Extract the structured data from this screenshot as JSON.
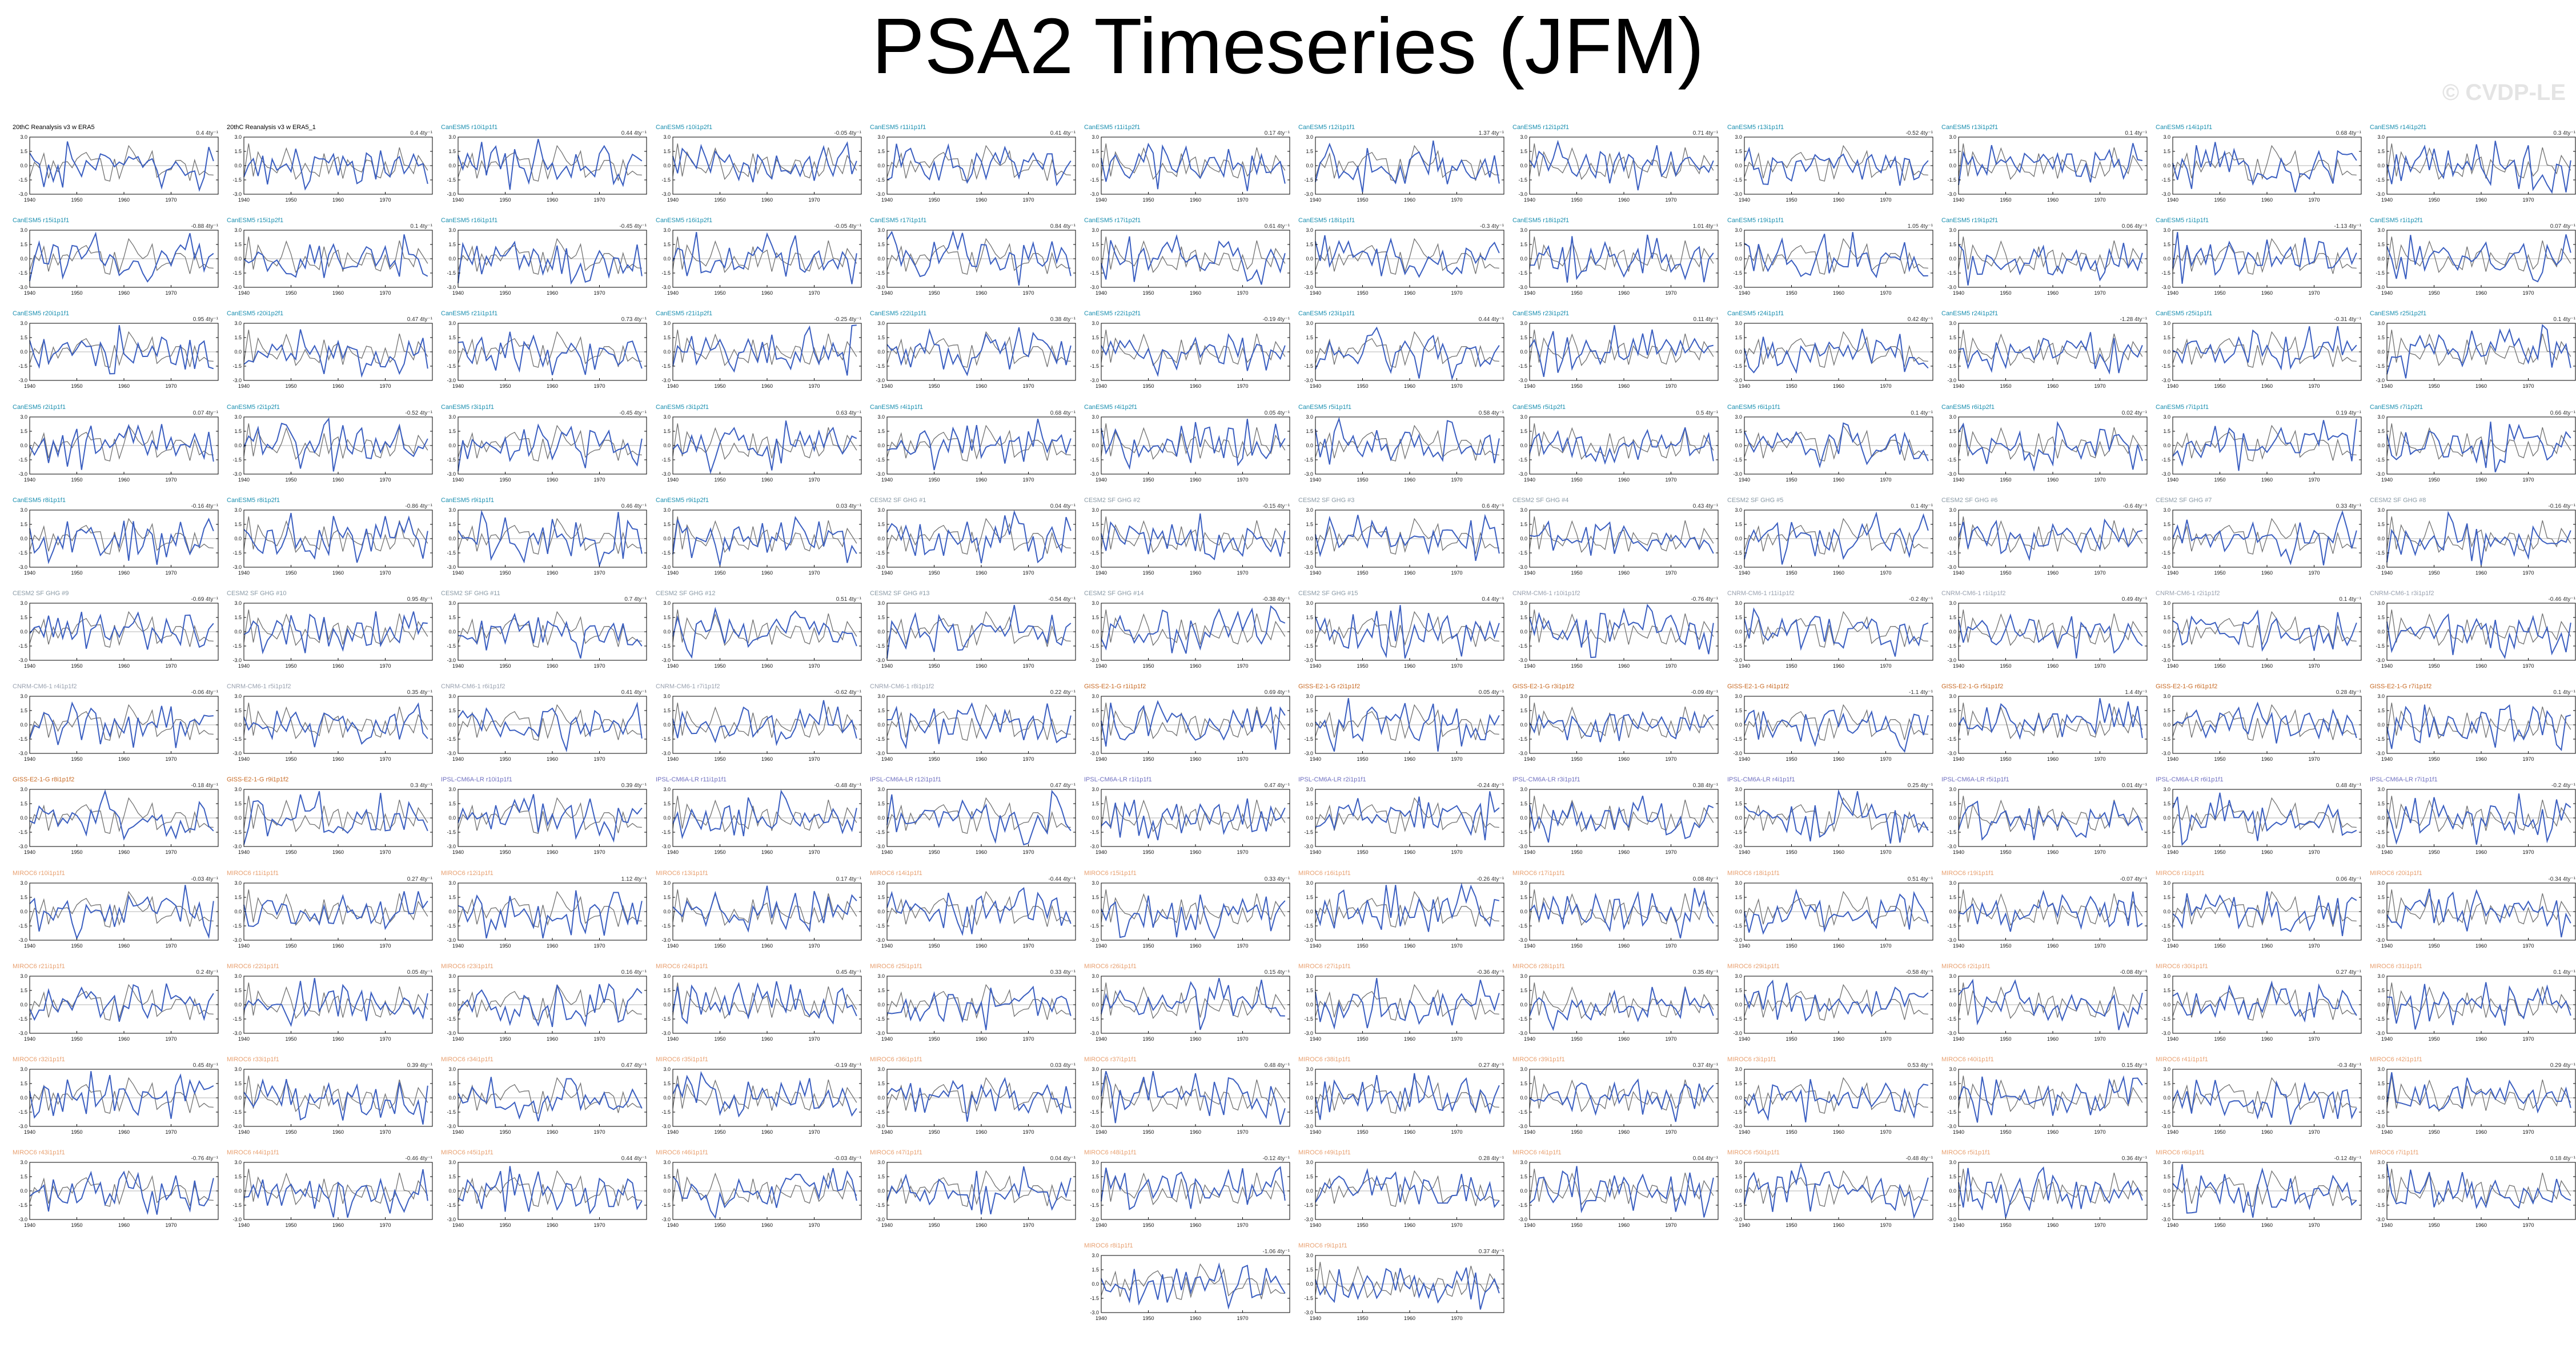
{
  "title": "PSA2 Timeseries (JFM)",
  "watermark": "© CVDP-LE",
  "colors": {
    "model_line": "#3a5ec0",
    "obs_line": "#707070",
    "cesm2_title": "#1a8fb0",
    "cesm2_sf_title": "#8a9aa6",
    "cnrm_title": "#9aa2b0",
    "giss_title": "#c86b26",
    "ipsl_title": "#7070c0",
    "miroc_title": "#e8a070",
    "obs_title": "#000000"
  },
  "chart_data": {
    "type": "line",
    "xlim": [
      1940,
      1980
    ],
    "ylim": [
      -3,
      3
    ],
    "x_ticks": [
      "1940",
      "1950",
      "1960",
      "1970"
    ],
    "y_ticks": [
      "3.0",
      "1.5",
      "0.0",
      "-1.5",
      "-3.0"
    ],
    "layout": {
      "columns": 12,
      "rows": 13
    },
    "panels": [
      {
        "title": "20thC Reanalysis v3 w ERA5",
        "trend": "0.4 4ty⁻¹",
        "group": "obs"
      },
      {
        "title": "20thC Reanalysis v3 w ERA5_1",
        "trend": "0.4 4ty⁻¹",
        "group": "obs"
      },
      {
        "title": "CanESM5 r10i1p1f1",
        "trend": "0.44 4ty⁻¹",
        "group": "cesm2"
      },
      {
        "title": "CanESM5 r10i1p2f1",
        "trend": "-0.05 4ty⁻¹",
        "group": "cesm2"
      },
      {
        "title": "CanESM5 r11i1p1f1",
        "trend": "0.41 4ty⁻¹",
        "group": "cesm2"
      },
      {
        "title": "CanESM5 r11i1p2f1",
        "trend": "0.17 4ty⁻¹",
        "group": "cesm2"
      },
      {
        "title": "CanESM5 r12i1p1f1",
        "trend": "1.37 4ty⁻¹",
        "group": "cesm2"
      },
      {
        "title": "CanESM5 r12i1p2f1",
        "trend": "0.71 4ty⁻¹",
        "group": "cesm2"
      },
      {
        "title": "CanESM5 r13i1p1f1",
        "trend": "-0.52 4ty⁻¹",
        "group": "cesm2"
      },
      {
        "title": "CanESM5 r13i1p2f1",
        "trend": "0.1 4ty⁻¹",
        "group": "cesm2"
      },
      {
        "title": "CanESM5 r14i1p1f1",
        "trend": "0.68 4ty⁻¹",
        "group": "cesm2"
      },
      {
        "title": "CanESM5 r14i1p2f1",
        "trend": "0.3 4ty⁻¹",
        "group": "cesm2"
      },
      {
        "title": "CanESM5 r15i1p1f1",
        "trend": "-0.88 4ty⁻¹",
        "group": "cesm2"
      },
      {
        "title": "CanESM5 r15i1p2f1",
        "trend": "0.1 4ty⁻¹",
        "group": "cesm2"
      },
      {
        "title": "CanESM5 r16i1p1f1",
        "trend": "-0.45 4ty⁻¹",
        "group": "cesm2"
      },
      {
        "title": "CanESM5 r16i1p2f1",
        "trend": "-0.05 4ty⁻¹",
        "group": "cesm2"
      },
      {
        "title": "CanESM5 r17i1p1f1",
        "trend": "0.84 4ty⁻¹",
        "group": "cesm2"
      },
      {
        "title": "CanESM5 r17i1p2f1",
        "trend": "0.61 4ty⁻¹",
        "group": "cesm2"
      },
      {
        "title": "CanESM5 r18i1p1f1",
        "trend": "-0.3 4ty⁻¹",
        "group": "cesm2"
      },
      {
        "title": "CanESM5 r18i1p2f1",
        "trend": "1.01 4ty⁻¹",
        "group": "cesm2"
      },
      {
        "title": "CanESM5 r19i1p1f1",
        "trend": "1.05 4ty⁻¹",
        "group": "cesm2"
      },
      {
        "title": "CanESM5 r19i1p2f1",
        "trend": "0.06 4ty⁻¹",
        "group": "cesm2"
      },
      {
        "title": "CanESM5 r1i1p1f1",
        "trend": "-1.13 4ty⁻¹",
        "group": "cesm2"
      },
      {
        "title": "CanESM5 r1i1p2f1",
        "trend": "0.07 4ty⁻¹",
        "group": "cesm2"
      },
      {
        "title": "CanESM5 r20i1p1f1",
        "trend": "0.95 4ty⁻¹",
        "group": "cesm2"
      },
      {
        "title": "CanESM5 r20i1p2f1",
        "trend": "0.47 4ty⁻¹",
        "group": "cesm2"
      },
      {
        "title": "CanESM5 r21i1p1f1",
        "trend": "0.73 4ty⁻¹",
        "group": "cesm2"
      },
      {
        "title": "CanESM5 r21i1p2f1",
        "trend": "-0.25 4ty⁻¹",
        "group": "cesm2"
      },
      {
        "title": "CanESM5 r22i1p1f1",
        "trend": "0.38 4ty⁻¹",
        "group": "cesm2"
      },
      {
        "title": "CanESM5 r22i1p2f1",
        "trend": "-0.19 4ty⁻¹",
        "group": "cesm2"
      },
      {
        "title": "CanESM5 r23i1p1f1",
        "trend": "0.44 4ty⁻¹",
        "group": "cesm2"
      },
      {
        "title": "CanESM5 r23i1p2f1",
        "trend": "0.11 4ty⁻¹",
        "group": "cesm2"
      },
      {
        "title": "CanESM5 r24i1p1f1",
        "trend": "0.42 4ty⁻¹",
        "group": "cesm2"
      },
      {
        "title": "CanESM5 r24i1p2f1",
        "trend": "-1.28 4ty⁻¹",
        "group": "cesm2"
      },
      {
        "title": "CanESM5 r25i1p1f1",
        "trend": "-0.31 4ty⁻¹",
        "group": "cesm2"
      },
      {
        "title": "CanESM5 r25i1p2f1",
        "trend": "0.1 4ty⁻¹",
        "group": "cesm2"
      },
      {
        "title": "CanESM5 r2i1p1f1",
        "trend": "0.07 4ty⁻¹",
        "group": "cesm2"
      },
      {
        "title": "CanESM5 r2i1p2f1",
        "trend": "-0.52 4ty⁻¹",
        "group": "cesm2"
      },
      {
        "title": "CanESM5 r3i1p1f1",
        "trend": "-0.45 4ty⁻¹",
        "group": "cesm2"
      },
      {
        "title": "CanESM5 r3i1p2f1",
        "trend": "0.63 4ty⁻¹",
        "group": "cesm2"
      },
      {
        "title": "CanESM5 r4i1p1f1",
        "trend": "0.68 4ty⁻¹",
        "group": "cesm2"
      },
      {
        "title": "CanESM5 r4i1p2f1",
        "trend": "0.05 4ty⁻¹",
        "group": "cesm2"
      },
      {
        "title": "CanESM5 r5i1p1f1",
        "trend": "0.58 4ty⁻¹",
        "group": "cesm2"
      },
      {
        "title": "CanESM5 r5i1p2f1",
        "trend": "0.5 4ty⁻¹",
        "group": "cesm2"
      },
      {
        "title": "CanESM5 r6i1p1f1",
        "trend": "0.1 4ty⁻¹",
        "group": "cesm2"
      },
      {
        "title": "CanESM5 r6i1p2f1",
        "trend": "0.02 4ty⁻¹",
        "group": "cesm2"
      },
      {
        "title": "CanESM5 r7i1p1f1",
        "trend": "0.19 4ty⁻¹",
        "group": "cesm2"
      },
      {
        "title": "CanESM5 r7i1p2f1",
        "trend": "0.66 4ty⁻¹",
        "group": "cesm2"
      },
      {
        "title": "CanESM5 r8i1p1f1",
        "trend": "-0.16 4ty⁻¹",
        "group": "cesm2"
      },
      {
        "title": "CanESM5 r8i1p2f1",
        "trend": "-0.86 4ty⁻¹",
        "group": "cesm2"
      },
      {
        "title": "CanESM5 r9i1p1f1",
        "trend": "0.46 4ty⁻¹",
        "group": "cesm2"
      },
      {
        "title": "CanESM5 r9i1p2f1",
        "trend": "0.03 4ty⁻¹",
        "group": "cesm2"
      },
      {
        "title": "CESM2 SF GHG #1",
        "trend": "0.04 4ty⁻¹",
        "group": "cesm2_sf"
      },
      {
        "title": "CESM2 SF GHG #2",
        "trend": "-0.15 4ty⁻¹",
        "group": "cesm2_sf"
      },
      {
        "title": "CESM2 SF GHG #3",
        "trend": "0.6 4ty⁻¹",
        "group": "cesm2_sf"
      },
      {
        "title": "CESM2 SF GHG #4",
        "trend": "0.43 4ty⁻¹",
        "group": "cesm2_sf"
      },
      {
        "title": "CESM2 SF GHG #5",
        "trend": "0.1 4ty⁻¹",
        "group": "cesm2_sf"
      },
      {
        "title": "CESM2 SF GHG #6",
        "trend": "-0.6 4ty⁻¹",
        "group": "cesm2_sf"
      },
      {
        "title": "CESM2 SF GHG #7",
        "trend": "0.33 4ty⁻¹",
        "group": "cesm2_sf"
      },
      {
        "title": "CESM2 SF GHG #8",
        "trend": "-0.16 4ty⁻¹",
        "group": "cesm2_sf"
      },
      {
        "title": "CESM2 SF GHG #9",
        "trend": "-0.69 4ty⁻¹",
        "group": "cesm2_sf"
      },
      {
        "title": "CESM2 SF GHG #10",
        "trend": "0.95 4ty⁻¹",
        "group": "cesm2_sf"
      },
      {
        "title": "CESM2 SF GHG #11",
        "trend": "0.7 4ty⁻¹",
        "group": "cesm2_sf"
      },
      {
        "title": "CESM2 SF GHG #12",
        "trend": "0.51 4ty⁻¹",
        "group": "cesm2_sf"
      },
      {
        "title": "CESM2 SF GHG #13",
        "trend": "-0.54 4ty⁻¹",
        "group": "cesm2_sf"
      },
      {
        "title": "CESM2 SF GHG #14",
        "trend": "-0.38 4ty⁻¹",
        "group": "cesm2_sf"
      },
      {
        "title": "CESM2 SF GHG #15",
        "trend": "0.4 4ty⁻¹",
        "group": "cesm2_sf"
      },
      {
        "title": "CNRM-CM6-1 r10i1p1f2",
        "trend": "-0.76 4ty⁻¹",
        "group": "cnrm"
      },
      {
        "title": "CNRM-CM6-1 r11i1p1f2",
        "trend": "-0.2 4ty⁻¹",
        "group": "cnrm"
      },
      {
        "title": "CNRM-CM6-1 r1i1p1f2",
        "trend": "0.49 4ty⁻¹",
        "group": "cnrm"
      },
      {
        "title": "CNRM-CM6-1 r2i1p1f2",
        "trend": "0.1 4ty⁻¹",
        "group": "cnrm"
      },
      {
        "title": "CNRM-CM6-1 r3i1p1f2",
        "trend": "-0.46 4ty⁻¹",
        "group": "cnrm"
      },
      {
        "title": "CNRM-CM6-1 r4i1p1f2",
        "trend": "-0.06 4ty⁻¹",
        "group": "cnrm"
      },
      {
        "title": "CNRM-CM6-1 r5i1p1f2",
        "trend": "0.35 4ty⁻¹",
        "group": "cnrm"
      },
      {
        "title": "CNRM-CM6-1 r6i1p1f2",
        "trend": "0.41 4ty⁻¹",
        "group": "cnrm"
      },
      {
        "title": "CNRM-CM6-1 r7i1p1f2",
        "trend": "-0.62 4ty⁻¹",
        "group": "cnrm"
      },
      {
        "title": "CNRM-CM6-1 r8i1p1f2",
        "trend": "0.22 4ty⁻¹",
        "group": "cnrm"
      },
      {
        "title": "GISS-E2-1-G r1i1p1f2",
        "trend": "0.69 4ty⁻¹",
        "group": "giss"
      },
      {
        "title": "GISS-E2-1-G r2i1p1f2",
        "trend": "0.05 4ty⁻¹",
        "group": "giss"
      },
      {
        "title": "GISS-E2-1-G r3i1p1f2",
        "trend": "-0.09 4ty⁻¹",
        "group": "giss"
      },
      {
        "title": "GISS-E2-1-G r4i1p1f2",
        "trend": "-1.1 4ty⁻¹",
        "group": "giss"
      },
      {
        "title": "GISS-E2-1-G r5i1p1f2",
        "trend": "1.4 4ty⁻¹",
        "group": "giss"
      },
      {
        "title": "GISS-E2-1-G r6i1p1f2",
        "trend": "0.28 4ty⁻¹",
        "group": "giss"
      },
      {
        "title": "GISS-E2-1-G r7i1p1f2",
        "trend": "0.1 4ty⁻¹",
        "group": "giss"
      },
      {
        "title": "GISS-E2-1-G r8i1p1f2",
        "trend": "-0.18 4ty⁻¹",
        "group": "giss"
      },
      {
        "title": "GISS-E2-1-G r9i1p1f2",
        "trend": "0.3 4ty⁻¹",
        "group": "giss"
      },
      {
        "title": "IPSL-CM6A-LR r10i1p1f1",
        "trend": "0.39 4ty⁻¹",
        "group": "ipsl"
      },
      {
        "title": "IPSL-CM6A-LR r11i1p1f1",
        "trend": "-0.48 4ty⁻¹",
        "group": "ipsl"
      },
      {
        "title": "IPSL-CM6A-LR r12i1p1f1",
        "trend": "0.47 4ty⁻¹",
        "group": "ipsl"
      },
      {
        "title": "IPSL-CM6A-LR r1i1p1f1",
        "trend": "0.47 4ty⁻¹",
        "group": "ipsl"
      },
      {
        "title": "IPSL-CM6A-LR r2i1p1f1",
        "trend": "-0.24 4ty⁻¹",
        "group": "ipsl"
      },
      {
        "title": "IPSL-CM6A-LR r3i1p1f1",
        "trend": "0.38 4ty⁻¹",
        "group": "ipsl"
      },
      {
        "title": "IPSL-CM6A-LR r4i1p1f1",
        "trend": "0.25 4ty⁻¹",
        "group": "ipsl"
      },
      {
        "title": "IPSL-CM6A-LR r5i1p1f1",
        "trend": "0.01 4ty⁻¹",
        "group": "ipsl"
      },
      {
        "title": "IPSL-CM6A-LR r6i1p1f1",
        "trend": "0.48 4ty⁻¹",
        "group": "ipsl"
      },
      {
        "title": "IPSL-CM6A-LR r7i1p1f1",
        "trend": "-0.2 4ty⁻¹",
        "group": "ipsl"
      },
      {
        "title": "MIROC6 r10i1p1f1",
        "trend": "-0.03 4ty⁻¹",
        "group": "miroc"
      },
      {
        "title": "MIROC6 r11i1p1f1",
        "trend": "0.27 4ty⁻¹",
        "group": "miroc"
      },
      {
        "title": "MIROC6 r12i1p1f1",
        "trend": "1.12 4ty⁻¹",
        "group": "miroc"
      },
      {
        "title": "MIROC6 r13i1p1f1",
        "trend": "0.17 4ty⁻¹",
        "group": "miroc"
      },
      {
        "title": "MIROC6 r14i1p1f1",
        "trend": "-0.44 4ty⁻¹",
        "group": "miroc"
      },
      {
        "title": "MIROC6 r15i1p1f1",
        "trend": "0.33 4ty⁻¹",
        "group": "miroc"
      },
      {
        "title": "MIROC6 r16i1p1f1",
        "trend": "-0.26 4ty⁻¹",
        "group": "miroc"
      },
      {
        "title": "MIROC6 r17i1p1f1",
        "trend": "0.08 4ty⁻¹",
        "group": "miroc"
      },
      {
        "title": "MIROC6 r18i1p1f1",
        "trend": "0.51 4ty⁻¹",
        "group": "miroc"
      },
      {
        "title": "MIROC6 r19i1p1f1",
        "trend": "-0.07 4ty⁻¹",
        "group": "miroc"
      },
      {
        "title": "MIROC6 r1i1p1f1",
        "trend": "0.06 4ty⁻¹",
        "group": "miroc"
      },
      {
        "title": "MIROC6 r20i1p1f1",
        "trend": "-0.34 4ty⁻¹",
        "group": "miroc"
      },
      {
        "title": "MIROC6 r21i1p1f1",
        "trend": "0.2 4ty⁻¹",
        "group": "miroc"
      },
      {
        "title": "MIROC6 r22i1p1f1",
        "trend": "0.05 4ty⁻¹",
        "group": "miroc"
      },
      {
        "title": "MIROC6 r23i1p1f1",
        "trend": "0.16 4ty⁻¹",
        "group": "miroc"
      },
      {
        "title": "MIROC6 r24i1p1f1",
        "trend": "0.45 4ty⁻¹",
        "group": "miroc"
      },
      {
        "title": "MIROC6 r25i1p1f1",
        "trend": "0.33 4ty⁻¹",
        "group": "miroc"
      },
      {
        "title": "MIROC6 r26i1p1f1",
        "trend": "0.15 4ty⁻¹",
        "group": "miroc"
      },
      {
        "title": "MIROC6 r27i1p1f1",
        "trend": "-0.36 4ty⁻¹",
        "group": "miroc"
      },
      {
        "title": "MIROC6 r28i1p1f1",
        "trend": "0.35 4ty⁻¹",
        "group": "miroc"
      },
      {
        "title": "MIROC6 r29i1p1f1",
        "trend": "-0.58 4ty⁻¹",
        "group": "miroc"
      },
      {
        "title": "MIROC6 r2i1p1f1",
        "trend": "-0.08 4ty⁻¹",
        "group": "miroc"
      },
      {
        "title": "MIROC6 r30i1p1f1",
        "trend": "0.27 4ty⁻¹",
        "group": "miroc"
      },
      {
        "title": "MIROC6 r31i1p1f1",
        "trend": "0.1 4ty⁻¹",
        "group": "miroc"
      },
      {
        "title": "MIROC6 r32i1p1f1",
        "trend": "0.45 4ty⁻¹",
        "group": "miroc"
      },
      {
        "title": "MIROC6 r33i1p1f1",
        "trend": "0.39 4ty⁻¹",
        "group": "miroc"
      },
      {
        "title": "MIROC6 r34i1p1f1",
        "trend": "0.47 4ty⁻¹",
        "group": "miroc"
      },
      {
        "title": "MIROC6 r35i1p1f1",
        "trend": "-0.19 4ty⁻¹",
        "group": "miroc"
      },
      {
        "title": "MIROC6 r36i1p1f1",
        "trend": "0.03 4ty⁻¹",
        "group": "miroc"
      },
      {
        "title": "MIROC6 r37i1p1f1",
        "trend": "0.48 4ty⁻¹",
        "group": "miroc"
      },
      {
        "title": "MIROC6 r38i1p1f1",
        "trend": "0.27 4ty⁻¹",
        "group": "miroc"
      },
      {
        "title": "MIROC6 r39i1p1f1",
        "trend": "0.37 4ty⁻¹",
        "group": "miroc"
      },
      {
        "title": "MIROC6 r3i1p1f1",
        "trend": "0.53 4ty⁻¹",
        "group": "miroc"
      },
      {
        "title": "MIROC6 r40i1p1f1",
        "trend": "0.15 4ty⁻¹",
        "group": "miroc"
      },
      {
        "title": "MIROC6 r41i1p1f1",
        "trend": "-0.3 4ty⁻¹",
        "group": "miroc"
      },
      {
        "title": "MIROC6 r42i1p1f1",
        "trend": "0.29 4ty⁻¹",
        "group": "miroc"
      },
      {
        "title": "MIROC6 r43i1p1f1",
        "trend": "-0.76 4ty⁻¹",
        "group": "miroc"
      },
      {
        "title": "MIROC6 r44i1p1f1",
        "trend": "-0.46 4ty⁻¹",
        "group": "miroc"
      },
      {
        "title": "MIROC6 r45i1p1f1",
        "trend": "0.44 4ty⁻¹",
        "group": "miroc"
      },
      {
        "title": "MIROC6 r46i1p1f1",
        "trend": "-0.03 4ty⁻¹",
        "group": "miroc"
      },
      {
        "title": "MIROC6 r47i1p1f1",
        "trend": "0.04 4ty⁻¹",
        "group": "miroc"
      },
      {
        "title": "MIROC6 r48i1p1f1",
        "trend": "-0.12 4ty⁻¹",
        "group": "miroc"
      },
      {
        "title": "MIROC6 r49i1p1f1",
        "trend": "0.28 4ty⁻¹",
        "group": "miroc"
      },
      {
        "title": "MIROC6 r4i1p1f1",
        "trend": "0.04 4ty⁻¹",
        "group": "miroc"
      },
      {
        "title": "MIROC6 r50i1p1f1",
        "trend": "-0.48 4ty⁻¹",
        "group": "miroc"
      },
      {
        "title": "MIROC6 r5i1p1f1",
        "trend": "0.36 4ty⁻¹",
        "group": "miroc"
      },
      {
        "title": "MIROC6 r6i1p1f1",
        "trend": "-0.12 4ty⁻¹",
        "group": "miroc"
      },
      {
        "title": "MIROC6 r7i1p1f1",
        "trend": "0.18 4ty⁻¹",
        "group": "miroc"
      },
      {
        "title": "MIROC6 r8i1p1f1",
        "trend": "-1.06 4ty⁻¹",
        "group": "miroc",
        "col": 5
      },
      {
        "title": "MIROC6 r9i1p1f1",
        "trend": "0.37 4ty⁻¹",
        "group": "miroc",
        "col": 6
      }
    ]
  }
}
